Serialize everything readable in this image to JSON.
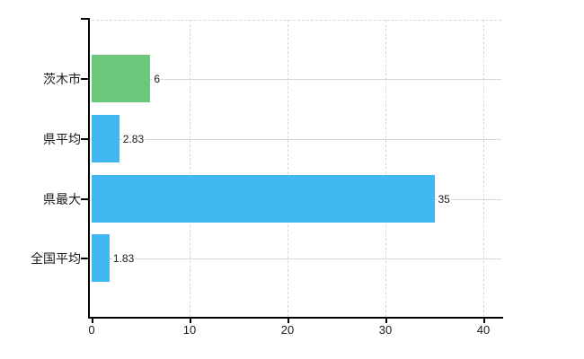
{
  "chart_data": {
    "type": "bar",
    "orientation": "horizontal",
    "title": "",
    "xlabel": "",
    "ylabel": "",
    "categories": [
      "茨木市",
      "県平均",
      "県最大",
      "全国平均"
    ],
    "values": [
      6,
      2.83,
      35,
      1.83
    ],
    "value_labels": [
      "6",
      "2.83",
      "35",
      "1.83"
    ],
    "bar_colors": [
      "#6BC87A",
      "#41B9F0",
      "#41B9F0",
      "#41B9F0"
    ],
    "x_axis": {
      "tick_labels": [
        "0",
        "10",
        "20",
        "30",
        "40"
      ],
      "tick_values": [
        0,
        10,
        20,
        30,
        40
      ],
      "range": [
        0,
        41.8
      ]
    },
    "grid": "on",
    "legend": "none",
    "colors": {
      "green_bar": "#6BC87A",
      "blue_bar": "#41B9F0",
      "axis": "#000000",
      "gridline": "#D7D7D7",
      "text": "#1A1A1A",
      "background": "#FFFFFF"
    }
  }
}
